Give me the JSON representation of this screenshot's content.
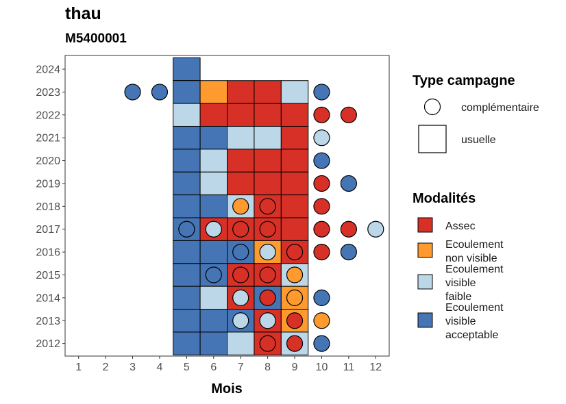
{
  "title": "thau",
  "subtitle": "M5400001",
  "chart_data": {
    "type": "heatmap",
    "xlabel": "Mois",
    "ylabel": "",
    "x_ticks": [
      "1",
      "2",
      "3",
      "4",
      "5",
      "6",
      "7",
      "8",
      "9",
      "10",
      "11",
      "12"
    ],
    "y_ticks": [
      "2012",
      "2013",
      "2014",
      "2015",
      "2016",
      "2017",
      "2018",
      "2019",
      "2020",
      "2021",
      "2022",
      "2023",
      "2024"
    ],
    "xlim": [
      0.5,
      12.5
    ],
    "ylim": [
      2011.45,
      2024.6
    ],
    "grid": false,
    "legend_placement": "right",
    "colors": {
      "Assec": "#d73027",
      "Ecoulement non visible": "#fe9a2e",
      "Ecoulement visible faible": "#bcd7e8",
      "Ecoulement visible acceptable": "#4575b4"
    },
    "legend": {
      "type_title": "Type campagne",
      "types": [
        {
          "key": "complementaire",
          "label": "complémentaire",
          "shape": "circle"
        },
        {
          "key": "usuelle",
          "label": "usuelle",
          "shape": "square"
        }
      ],
      "mod_title": "Modalités",
      "modalites": [
        {
          "key": "Assec",
          "lines": [
            "Assec"
          ]
        },
        {
          "key": "Ecoulement non visible",
          "lines": [
            "Ecoulement",
            "non visible"
          ]
        },
        {
          "key": "Ecoulement visible faible",
          "lines": [
            "Ecoulement",
            "visible",
            "faible"
          ]
        },
        {
          "key": "Ecoulement visible acceptable",
          "lines": [
            "Ecoulement",
            "visible",
            "acceptable"
          ]
        }
      ]
    },
    "usuelle": [
      {
        "year": 2024,
        "month": 5,
        "modalite": "Ecoulement visible acceptable"
      },
      {
        "year": 2023,
        "month": 5,
        "modalite": "Ecoulement visible acceptable"
      },
      {
        "year": 2023,
        "month": 6,
        "modalite": "Ecoulement non visible"
      },
      {
        "year": 2023,
        "month": 7,
        "modalite": "Assec"
      },
      {
        "year": 2023,
        "month": 8,
        "modalite": "Assec"
      },
      {
        "year": 2023,
        "month": 9,
        "modalite": "Ecoulement visible faible"
      },
      {
        "year": 2022,
        "month": 5,
        "modalite": "Ecoulement visible faible"
      },
      {
        "year": 2022,
        "month": 6,
        "modalite": "Assec"
      },
      {
        "year": 2022,
        "month": 7,
        "modalite": "Assec"
      },
      {
        "year": 2022,
        "month": 8,
        "modalite": "Assec"
      },
      {
        "year": 2022,
        "month": 9,
        "modalite": "Assec"
      },
      {
        "year": 2021,
        "month": 5,
        "modalite": "Ecoulement visible acceptable"
      },
      {
        "year": 2021,
        "month": 6,
        "modalite": "Ecoulement visible acceptable"
      },
      {
        "year": 2021,
        "month": 7,
        "modalite": "Ecoulement visible faible"
      },
      {
        "year": 2021,
        "month": 8,
        "modalite": "Ecoulement visible faible"
      },
      {
        "year": 2021,
        "month": 9,
        "modalite": "Assec"
      },
      {
        "year": 2020,
        "month": 5,
        "modalite": "Ecoulement visible acceptable"
      },
      {
        "year": 2020,
        "month": 6,
        "modalite": "Ecoulement visible faible"
      },
      {
        "year": 2020,
        "month": 7,
        "modalite": "Assec"
      },
      {
        "year": 2020,
        "month": 8,
        "modalite": "Assec"
      },
      {
        "year": 2020,
        "month": 9,
        "modalite": "Assec"
      },
      {
        "year": 2019,
        "month": 5,
        "modalite": "Ecoulement visible acceptable"
      },
      {
        "year": 2019,
        "month": 6,
        "modalite": "Ecoulement visible faible"
      },
      {
        "year": 2019,
        "month": 7,
        "modalite": "Assec"
      },
      {
        "year": 2019,
        "month": 8,
        "modalite": "Assec"
      },
      {
        "year": 2019,
        "month": 9,
        "modalite": "Assec"
      },
      {
        "year": 2018,
        "month": 5,
        "modalite": "Ecoulement visible acceptable"
      },
      {
        "year": 2018,
        "month": 6,
        "modalite": "Ecoulement visible acceptable"
      },
      {
        "year": 2018,
        "month": 7,
        "modalite": "Ecoulement visible faible"
      },
      {
        "year": 2018,
        "month": 8,
        "modalite": "Assec"
      },
      {
        "year": 2018,
        "month": 9,
        "modalite": "Assec"
      },
      {
        "year": 2017,
        "month": 5,
        "modalite": "Ecoulement visible acceptable"
      },
      {
        "year": 2017,
        "month": 6,
        "modalite": "Assec"
      },
      {
        "year": 2017,
        "month": 7,
        "modalite": "Assec"
      },
      {
        "year": 2017,
        "month": 8,
        "modalite": "Assec"
      },
      {
        "year": 2017,
        "month": 9,
        "modalite": "Assec"
      },
      {
        "year": 2016,
        "month": 5,
        "modalite": "Ecoulement visible acceptable"
      },
      {
        "year": 2016,
        "month": 6,
        "modalite": "Ecoulement visible acceptable"
      },
      {
        "year": 2016,
        "month": 7,
        "modalite": "Ecoulement visible acceptable"
      },
      {
        "year": 2016,
        "month": 8,
        "modalite": "Ecoulement non visible"
      },
      {
        "year": 2016,
        "month": 9,
        "modalite": "Assec"
      },
      {
        "year": 2015,
        "month": 5,
        "modalite": "Ecoulement visible acceptable"
      },
      {
        "year": 2015,
        "month": 6,
        "modalite": "Ecoulement visible acceptable"
      },
      {
        "year": 2015,
        "month": 7,
        "modalite": "Assec"
      },
      {
        "year": 2015,
        "month": 8,
        "modalite": "Assec"
      },
      {
        "year": 2015,
        "month": 9,
        "modalite": "Ecoulement visible faible"
      },
      {
        "year": 2014,
        "month": 5,
        "modalite": "Ecoulement visible acceptable"
      },
      {
        "year": 2014,
        "month": 6,
        "modalite": "Ecoulement visible faible"
      },
      {
        "year": 2014,
        "month": 7,
        "modalite": "Assec"
      },
      {
        "year": 2014,
        "month": 8,
        "modalite": "Ecoulement visible acceptable"
      },
      {
        "year": 2014,
        "month": 9,
        "modalite": "Ecoulement non visible"
      },
      {
        "year": 2013,
        "month": 5,
        "modalite": "Ecoulement visible acceptable"
      },
      {
        "year": 2013,
        "month": 6,
        "modalite": "Ecoulement visible acceptable"
      },
      {
        "year": 2013,
        "month": 7,
        "modalite": "Ecoulement visible acceptable"
      },
      {
        "year": 2013,
        "month": 8,
        "modalite": "Assec"
      },
      {
        "year": 2013,
        "month": 9,
        "modalite": "Ecoulement non visible"
      },
      {
        "year": 2012,
        "month": 5,
        "modalite": "Ecoulement visible acceptable"
      },
      {
        "year": 2012,
        "month": 6,
        "modalite": "Ecoulement visible acceptable"
      },
      {
        "year": 2012,
        "month": 7,
        "modalite": "Ecoulement visible faible"
      },
      {
        "year": 2012,
        "month": 8,
        "modalite": "Assec"
      },
      {
        "year": 2012,
        "month": 9,
        "modalite": "Ecoulement visible faible"
      }
    ],
    "complementaire": [
      {
        "year": 2023,
        "month": 3,
        "modalite": "Ecoulement visible acceptable"
      },
      {
        "year": 2023,
        "month": 4,
        "modalite": "Ecoulement visible acceptable"
      },
      {
        "year": 2023,
        "month": 10,
        "modalite": "Ecoulement visible acceptable"
      },
      {
        "year": 2022,
        "month": 10,
        "modalite": "Assec"
      },
      {
        "year": 2022,
        "month": 11,
        "modalite": "Assec"
      },
      {
        "year": 2021,
        "month": 10,
        "modalite": "Ecoulement visible faible"
      },
      {
        "year": 2020,
        "month": 10,
        "modalite": "Ecoulement visible acceptable"
      },
      {
        "year": 2019,
        "month": 10,
        "modalite": "Assec"
      },
      {
        "year": 2019,
        "month": 11,
        "modalite": "Ecoulement visible acceptable"
      },
      {
        "year": 2018,
        "month": 7,
        "modalite": "Ecoulement non visible"
      },
      {
        "year": 2018,
        "month": 8,
        "modalite": "Assec"
      },
      {
        "year": 2018,
        "month": 10,
        "modalite": "Assec"
      },
      {
        "year": 2017,
        "month": 5,
        "modalite": "Ecoulement visible acceptable"
      },
      {
        "year": 2017,
        "month": 6,
        "modalite": "Ecoulement visible faible"
      },
      {
        "year": 2017,
        "month": 7,
        "modalite": "Assec"
      },
      {
        "year": 2017,
        "month": 8,
        "modalite": "Assec"
      },
      {
        "year": 2017,
        "month": 10,
        "modalite": "Assec"
      },
      {
        "year": 2017,
        "month": 11,
        "modalite": "Assec"
      },
      {
        "year": 2017,
        "month": 12,
        "modalite": "Ecoulement visible faible"
      },
      {
        "year": 2016,
        "month": 7,
        "modalite": "Ecoulement visible acceptable"
      },
      {
        "year": 2016,
        "month": 8,
        "modalite": "Ecoulement visible faible"
      },
      {
        "year": 2016,
        "month": 9,
        "modalite": "Assec"
      },
      {
        "year": 2016,
        "month": 10,
        "modalite": "Assec"
      },
      {
        "year": 2016,
        "month": 11,
        "modalite": "Ecoulement visible acceptable"
      },
      {
        "year": 2015,
        "month": 6,
        "modalite": "Ecoulement visible acceptable"
      },
      {
        "year": 2015,
        "month": 7,
        "modalite": "Assec"
      },
      {
        "year": 2015,
        "month": 8,
        "modalite": "Assec"
      },
      {
        "year": 2015,
        "month": 9,
        "modalite": "Ecoulement non visible"
      },
      {
        "year": 2014,
        "month": 7,
        "modalite": "Ecoulement visible faible"
      },
      {
        "year": 2014,
        "month": 8,
        "modalite": "Assec"
      },
      {
        "year": 2014,
        "month": 9,
        "modalite": "Ecoulement non visible"
      },
      {
        "year": 2014,
        "month": 10,
        "modalite": "Ecoulement visible acceptable"
      },
      {
        "year": 2013,
        "month": 7,
        "modalite": "Ecoulement visible faible"
      },
      {
        "year": 2013,
        "month": 8,
        "modalite": "Ecoulement visible faible"
      },
      {
        "year": 2013,
        "month": 9,
        "modalite": "Assec"
      },
      {
        "year": 2013,
        "month": 10,
        "modalite": "Ecoulement non visible"
      },
      {
        "year": 2012,
        "month": 8,
        "modalite": "Assec"
      },
      {
        "year": 2012,
        "month": 9,
        "modalite": "Assec"
      },
      {
        "year": 2012,
        "month": 10,
        "modalite": "Ecoulement visible acceptable"
      }
    ]
  }
}
